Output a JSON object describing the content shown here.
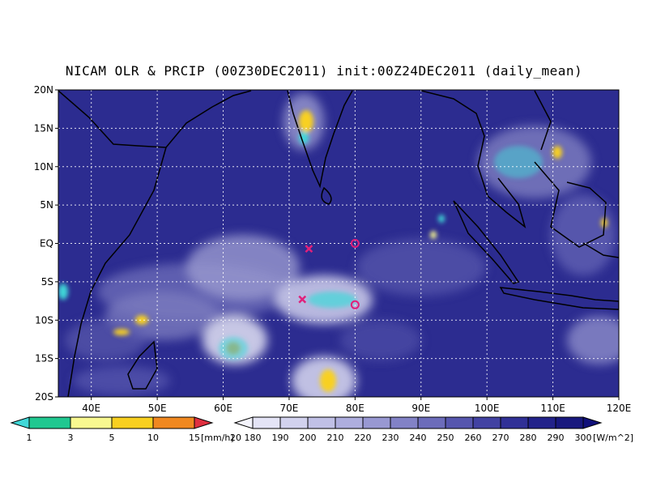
{
  "title": "NICAM OLR & PRCIP (00Z30DEC2011) init:00Z24DEC2011 (daily_mean)",
  "map": {
    "lon_range": [
      35,
      120
    ],
    "lat_range": [
      -20,
      20
    ],
    "lon_ticks": [
      "40E",
      "50E",
      "60E",
      "70E",
      "80E",
      "90E",
      "100E",
      "110E",
      "120E"
    ],
    "lat_ticks": [
      "20N",
      "15N",
      "10N",
      "5N",
      "EQ",
      "5S",
      "10S",
      "15S",
      "20S"
    ],
    "markers": [
      {
        "type": "x",
        "lon": 73,
        "lat": -0.7
      },
      {
        "type": "circle",
        "lon": 80,
        "lat": 0
      },
      {
        "type": "x",
        "lon": 72,
        "lat": -7.3
      },
      {
        "type": "circle",
        "lon": 80,
        "lat": -8
      }
    ],
    "marker_color": "#e0207a",
    "ocean_color": "#2a2a8c",
    "land_color": "#3c3ca0"
  },
  "precip_bar": {
    "labels": [
      "1",
      "3",
      "5",
      "10",
      "15",
      "20"
    ],
    "unit": "[mm/h]",
    "colors": [
      "#40d8d8",
      "#20c890",
      "#f8f890",
      "#f8d020",
      "#f08820",
      "#e03040"
    ]
  },
  "olr_bar": {
    "labels": [
      "180",
      "190",
      "200",
      "210",
      "220",
      "230",
      "240",
      "250",
      "260",
      "270",
      "280",
      "290",
      "300"
    ],
    "unit": "[W/m^2]",
    "colors": [
      "#f4f4fc",
      "#e4e4f6",
      "#d2d2ee",
      "#c0c0e6",
      "#aeaede",
      "#9898d2",
      "#8282c6",
      "#6c6cba",
      "#5656ae",
      "#4242a2",
      "#303096",
      "#22228a",
      "#18187e",
      "#10107a"
    ]
  }
}
